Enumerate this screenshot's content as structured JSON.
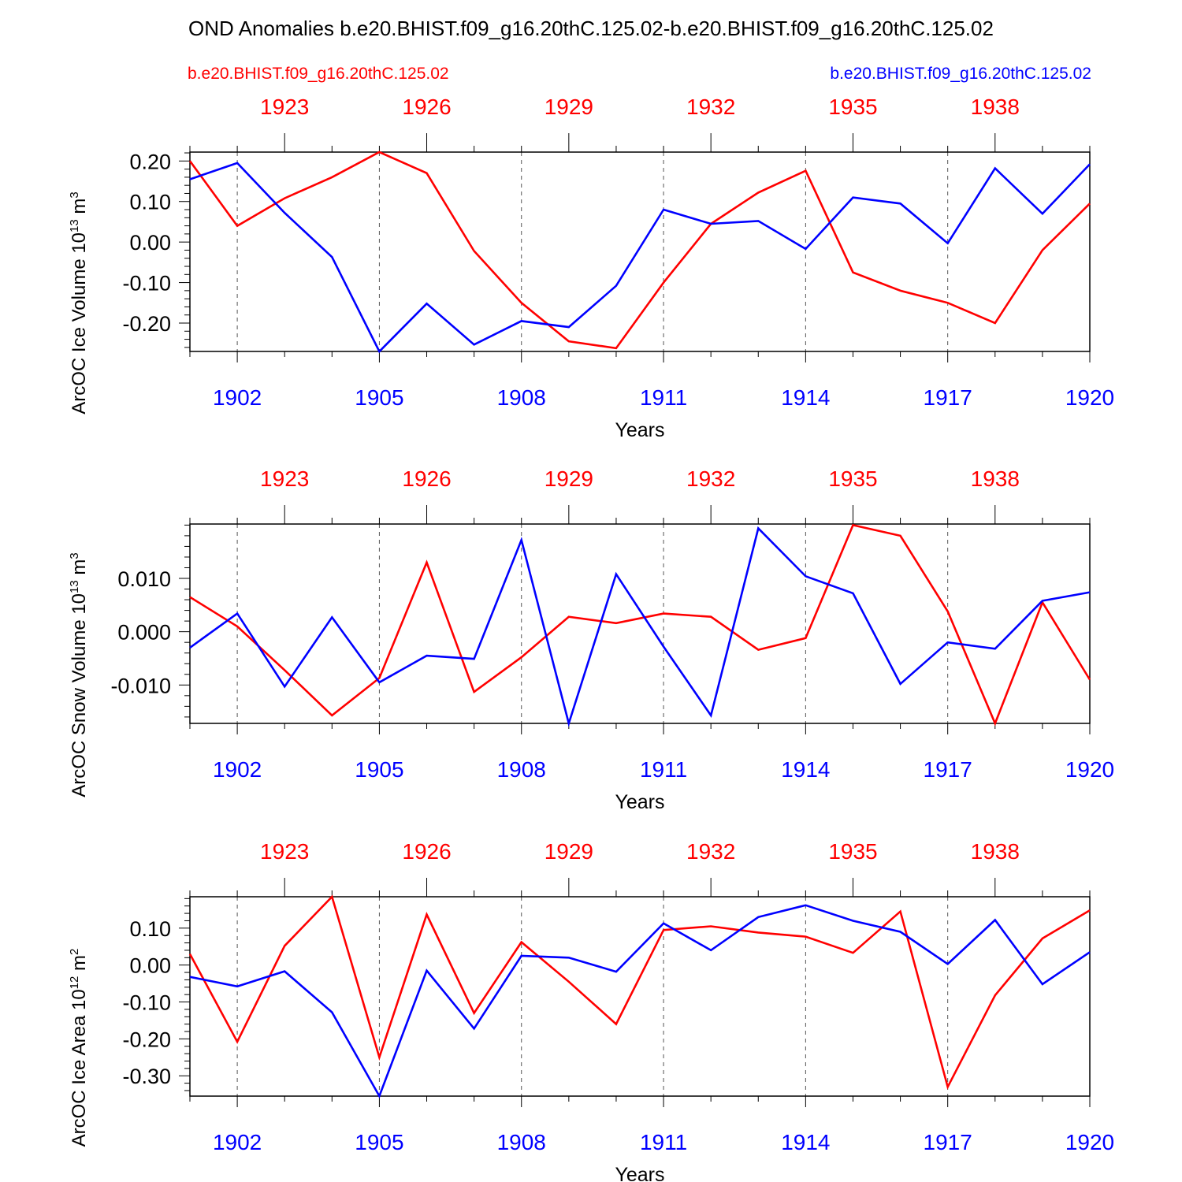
{
  "title": "OND Anomalies b.e20.BHIST.f09_g16.20thC.125.02-b.e20.BHIST.f09_g16.20thC.125.02",
  "legend": {
    "left_label": "b.e20.BHIST.f09_g16.20thC.125.02",
    "right_label": "b.e20.BHIST.f09_g16.20thC.125.02"
  },
  "colors": {
    "red": "#ff0000",
    "blue": "#0000ff",
    "axis": "#000000",
    "grid": "#555555"
  },
  "chart_data": [
    {
      "type": "line",
      "ylabel_main": "ArcOC Ice Volume 10",
      "ylabel_exp": "13",
      "ylabel_unit": " m",
      "ylabel_unit_exp": "3",
      "xlabel": "Years",
      "x_bottom": [
        1901,
        1902,
        1903,
        1904,
        1905,
        1906,
        1907,
        1908,
        1909,
        1910,
        1911,
        1912,
        1913,
        1914,
        1915,
        1916,
        1917,
        1918,
        1919,
        1920
      ],
      "x_top": [
        1921,
        1922,
        1923,
        1924,
        1925,
        1926,
        1927,
        1928,
        1929,
        1930,
        1931,
        1932,
        1933,
        1934,
        1935,
        1936,
        1937,
        1938,
        1939,
        1940
      ],
      "bottom_tick_labels": [
        "1902",
        "1905",
        "1908",
        "1911",
        "1914",
        "1917",
        "1920"
      ],
      "top_tick_labels": [
        "1923",
        "1926",
        "1929",
        "1932",
        "1935",
        "1938"
      ],
      "ytick_labels": [
        "0.20",
        "0.10",
        "0.00",
        "-0.10",
        "-0.20"
      ],
      "yticks": [
        0.2,
        0.1,
        0.0,
        -0.1,
        -0.2
      ],
      "ylim": [
        -0.27,
        0.222
      ],
      "series": [
        {
          "name": "b.e20.BHIST.f09_g16.20thC.125.02 (1921-1940)",
          "color": "red",
          "values": [
            0.2,
            0.04,
            0.108,
            0.16,
            0.222,
            0.17,
            -0.022,
            -0.15,
            -0.245,
            -0.262,
            -0.1,
            0.045,
            0.122,
            0.176,
            -0.075,
            -0.12,
            -0.15,
            -0.2,
            -0.02,
            0.095
          ]
        },
        {
          "name": "b.e20.BHIST.f09_g16.20thC.125.02 (1901-1920)",
          "color": "blue",
          "values": [
            0.155,
            0.195,
            0.072,
            -0.037,
            -0.27,
            -0.152,
            -0.253,
            -0.195,
            -0.21,
            -0.108,
            0.08,
            0.045,
            0.052,
            -0.017,
            0.11,
            0.095,
            -0.003,
            0.182,
            0.07,
            0.192
          ]
        }
      ]
    },
    {
      "type": "line",
      "ylabel_main": "ArcOC Snow Volume 10",
      "ylabel_exp": "13",
      "ylabel_unit": " m",
      "ylabel_unit_exp": "3",
      "xlabel": "Years",
      "x_bottom": [
        1901,
        1902,
        1903,
        1904,
        1905,
        1906,
        1907,
        1908,
        1909,
        1910,
        1911,
        1912,
        1913,
        1914,
        1915,
        1916,
        1917,
        1918,
        1919,
        1920
      ],
      "x_top": [
        1921,
        1922,
        1923,
        1924,
        1925,
        1926,
        1927,
        1928,
        1929,
        1930,
        1931,
        1932,
        1933,
        1934,
        1935,
        1936,
        1937,
        1938,
        1939,
        1940
      ],
      "bottom_tick_labels": [
        "1902",
        "1905",
        "1908",
        "1911",
        "1914",
        "1917",
        "1920"
      ],
      "top_tick_labels": [
        "1923",
        "1926",
        "1929",
        "1932",
        "1935",
        "1938"
      ],
      "ytick_labels": [
        "0.010",
        "0.000",
        "-0.010"
      ],
      "yticks": [
        0.01,
        0.0,
        -0.01
      ],
      "ylim": [
        -0.0172,
        0.0202
      ],
      "series": [
        {
          "name": "b.e20.BHIST.f09_g16.20thC.125.02 (1921-1940)",
          "color": "red",
          "values": [
            0.0065,
            0.001,
            -0.0072,
            -0.0157,
            -0.0087,
            0.013,
            -0.0113,
            -0.0048,
            0.0028,
            0.0016,
            0.0034,
            0.0028,
            -0.0034,
            -0.0012,
            0.02,
            0.018,
            0.0038,
            -0.0172,
            0.0055,
            -0.009
          ]
        },
        {
          "name": "b.e20.BHIST.f09_g16.20thC.125.02 (1901-1920)",
          "color": "blue",
          "values": [
            -0.003,
            0.0034,
            -0.0103,
            0.0027,
            -0.0095,
            -0.0045,
            -0.0051,
            0.0172,
            -0.0172,
            0.0108,
            -0.0028,
            -0.0157,
            0.0194,
            0.0104,
            0.0072,
            -0.0098,
            -0.002,
            -0.0032,
            0.0058,
            0.0074
          ]
        }
      ]
    },
    {
      "type": "line",
      "ylabel_main": "ArcOC Ice Area 10",
      "ylabel_exp": "12",
      "ylabel_unit": " m",
      "ylabel_unit_exp": "2",
      "xlabel": "Years",
      "x_bottom": [
        1901,
        1902,
        1903,
        1904,
        1905,
        1906,
        1907,
        1908,
        1909,
        1910,
        1911,
        1912,
        1913,
        1914,
        1915,
        1916,
        1917,
        1918,
        1919,
        1920
      ],
      "x_top": [
        1921,
        1922,
        1923,
        1924,
        1925,
        1926,
        1927,
        1928,
        1929,
        1930,
        1931,
        1932,
        1933,
        1934,
        1935,
        1936,
        1937,
        1938,
        1939,
        1940
      ],
      "bottom_tick_labels": [
        "1902",
        "1905",
        "1908",
        "1911",
        "1914",
        "1917",
        "1920"
      ],
      "top_tick_labels": [
        "1923",
        "1926",
        "1929",
        "1932",
        "1935",
        "1938"
      ],
      "ytick_labels": [
        "0.10",
        "0.00",
        "-0.10",
        "-0.20",
        "-0.30"
      ],
      "yticks": [
        0.1,
        0.0,
        -0.1,
        -0.2,
        -0.3
      ],
      "ylim": [
        -0.355,
        0.185
      ],
      "series": [
        {
          "name": "b.e20.BHIST.f09_g16.20thC.125.02 (1921-1940)",
          "color": "red",
          "values": [
            0.03,
            -0.208,
            0.052,
            0.185,
            -0.25,
            0.137,
            -0.13,
            0.062,
            -0.045,
            -0.16,
            0.095,
            0.105,
            0.088,
            0.077,
            0.033,
            0.145,
            -0.33,
            -0.082,
            0.072,
            0.148
          ]
        },
        {
          "name": "b.e20.BHIST.f09_g16.20thC.125.02 (1901-1920)",
          "color": "blue",
          "values": [
            -0.032,
            -0.058,
            -0.017,
            -0.128,
            -0.355,
            -0.015,
            -0.172,
            0.025,
            0.02,
            -0.018,
            0.113,
            0.04,
            0.13,
            0.162,
            0.12,
            0.09,
            0.003,
            0.122,
            -0.052,
            0.035
          ]
        }
      ]
    }
  ]
}
